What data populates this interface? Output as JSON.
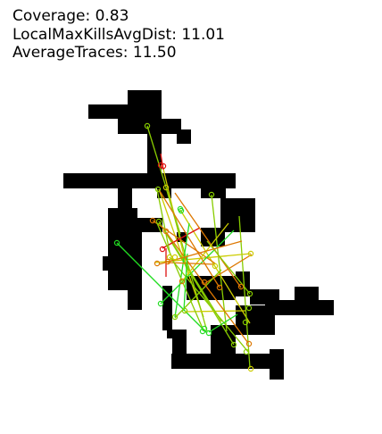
{
  "stats": {
    "coverage": "Coverage: 0.83",
    "local_max_kills_avg_dist": "LocalMaxKillsAvgDist: 11.01",
    "average_traces": "AverageTraces: 11.50"
  },
  "colors": {
    "map": "#000000",
    "background": "#ffffff",
    "trace_green": "#22dd22",
    "trace_lime": "#88cc00",
    "trace_yellow": "#cccc00",
    "trace_orange": "#dd7700",
    "trace_red": "#dd1111"
  }
}
